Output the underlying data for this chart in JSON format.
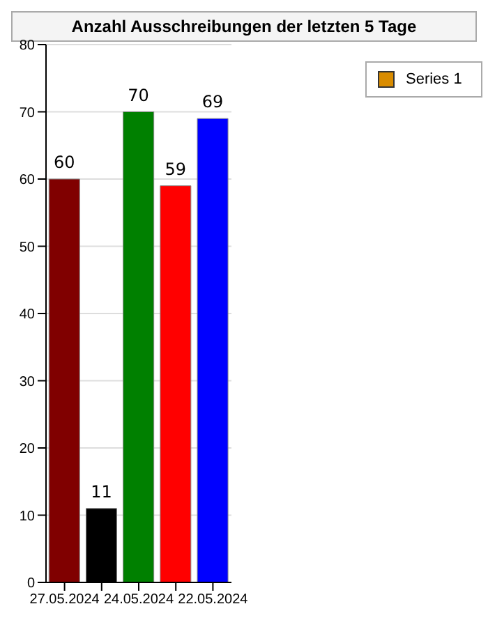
{
  "chart_data": {
    "type": "bar",
    "title": "Anzahl Ausschreibungen der letzten 5 Tage",
    "categories": [
      "27.05.2024",
      null,
      "24.05.2024",
      null,
      "22.05.2024"
    ],
    "series": [
      {
        "name": "Series 1",
        "color": "#d98c00",
        "colors": [
          "#800000",
          "#000000",
          "#008000",
          "#ff0000",
          "#0000ff"
        ],
        "values": [
          60,
          11,
          70,
          59,
          69
        ]
      }
    ],
    "ylim": [
      0,
      80
    ],
    "yticks": [
      0,
      10,
      20,
      30,
      40,
      50,
      60,
      70,
      80
    ],
    "grid": "y",
    "legend": "top right",
    "data_labels": true
  }
}
